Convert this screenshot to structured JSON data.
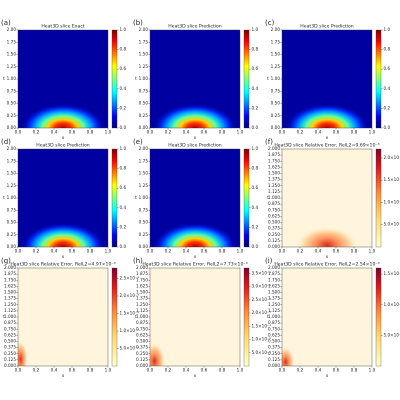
{
  "chart_data": [
    {
      "type": "heatmap",
      "panel_label": "(a)",
      "title": "Heat3D slice Exact",
      "x_label": "x",
      "y_label": "t",
      "colormap": "jet",
      "clim": [
        0,
        1
      ],
      "xlim": [
        0,
        1
      ],
      "ylim": [
        0,
        2
      ],
      "xticks": [
        {
          "value": 0,
          "label": "0.0"
        },
        0.2,
        0.4,
        0.6,
        0.8,
        {
          "value": 1,
          "label": "1.0"
        }
      ],
      "yticks": [
        {
          "value": 0,
          "label": "0.00"
        },
        0.25,
        {
          "value": 0.5,
          "label": "0.50"
        },
        0.75,
        {
          "value": 1,
          "label": "1.00"
        },
        1.25,
        {
          "value": 1.5,
          "label": "1.50"
        },
        1.75,
        {
          "value": 2,
          "label": "2.00"
        }
      ],
      "cticks": [
        {
          "value": 0,
          "label": "0.0"
        },
        0.2,
        0.4,
        0.6,
        0.8,
        {
          "value": 1,
          "label": "1.0"
        }
      ]
    },
    {
      "type": "heatmap",
      "panel_label": "(b)",
      "title": "Heat3D slice Prediction",
      "x_label": "x",
      "y_label": "t",
      "colormap": "jet",
      "clim": [
        0,
        1
      ],
      "xlim": [
        0,
        1
      ],
      "ylim": [
        0,
        2
      ],
      "xticks": [
        {
          "value": 0,
          "label": "0.0"
        },
        0.2,
        0.4,
        0.6,
        0.8,
        {
          "value": 1,
          "label": "1.0"
        }
      ],
      "yticks": [
        {
          "value": 0,
          "label": "0.00"
        },
        0.25,
        {
          "value": 0.5,
          "label": "0.50"
        },
        0.75,
        {
          "value": 1,
          "label": "1.00"
        },
        1.25,
        {
          "value": 1.5,
          "label": "1.50"
        },
        1.75,
        {
          "value": 2,
          "label": "2.00"
        }
      ],
      "cticks": [
        {
          "value": 0,
          "label": "0.0"
        },
        0.2,
        0.4,
        0.6,
        0.8,
        {
          "value": 1,
          "label": "1.0"
        }
      ]
    },
    {
      "type": "heatmap",
      "panel_label": "(c)",
      "title": "Heat3D slice Prediction",
      "x_label": "x",
      "y_label": "t",
      "colormap": "jet",
      "clim": [
        0,
        1
      ],
      "xlim": [
        0,
        1
      ],
      "ylim": [
        0,
        2
      ],
      "xticks": [
        {
          "value": 0,
          "label": "0.0"
        },
        0.2,
        0.4,
        0.6,
        0.8,
        {
          "value": 1,
          "label": "1.0"
        }
      ],
      "yticks": [
        {
          "value": 0,
          "label": "0.00"
        },
        0.25,
        {
          "value": 0.5,
          "label": "0.50"
        },
        0.75,
        {
          "value": 1,
          "label": "1.00"
        },
        1.25,
        {
          "value": 1.5,
          "label": "1.50"
        },
        1.75,
        {
          "value": 2,
          "label": "2.00"
        }
      ],
      "cticks": [
        {
          "value": 0,
          "label": "0.0"
        },
        0.2,
        0.4,
        0.6,
        0.8,
        {
          "value": 1,
          "label": "1.0"
        }
      ]
    },
    {
      "type": "heatmap",
      "panel_label": "(d)",
      "title": "Heat3D slice Prediction",
      "x_label": "x",
      "y_label": "t",
      "colormap": "jet",
      "clim": [
        0,
        1
      ],
      "xlim": [
        0,
        1
      ],
      "ylim": [
        0,
        2
      ],
      "xticks": [
        {
          "value": 0,
          "label": "0.0"
        },
        0.2,
        0.4,
        0.6,
        0.8,
        {
          "value": 1,
          "label": "1.0"
        }
      ],
      "yticks": [
        {
          "value": 0,
          "label": "0.00"
        },
        0.25,
        {
          "value": 0.5,
          "label": "0.50"
        },
        0.75,
        {
          "value": 1,
          "label": "1.00"
        },
        1.25,
        {
          "value": 1.5,
          "label": "1.50"
        },
        1.75,
        {
          "value": 2,
          "label": "2.00"
        }
      ],
      "cticks": [
        {
          "value": 0,
          "label": "0.0"
        },
        0.2,
        0.4,
        0.6,
        0.8,
        {
          "value": 1,
          "label": "1.0"
        }
      ]
    },
    {
      "type": "heatmap",
      "panel_label": "(e)",
      "title": "Heat3D slice Prediction",
      "x_label": "x",
      "y_label": "t",
      "colormap": "jet",
      "clim": [
        0,
        1
      ],
      "xlim": [
        0,
        1
      ],
      "ylim": [
        0,
        2
      ],
      "xticks": [
        {
          "value": 0,
          "label": "0.0"
        },
        0.2,
        0.4,
        0.6,
        0.8,
        {
          "value": 1,
          "label": "1.0"
        }
      ],
      "yticks": [
        {
          "value": 0,
          "label": "0.00"
        },
        0.25,
        {
          "value": 0.5,
          "label": "0.50"
        },
        0.75,
        {
          "value": 1,
          "label": "1.00"
        },
        1.25,
        {
          "value": 1.5,
          "label": "1.50"
        },
        1.75,
        {
          "value": 2,
          "label": "2.00"
        }
      ],
      "cticks": [
        {
          "value": 0,
          "label": "0.0"
        },
        0.2,
        0.4,
        0.6,
        0.8,
        {
          "value": 1,
          "label": "1.0"
        }
      ]
    },
    {
      "type": "heatmap",
      "panel_label": "(f)",
      "title": "Heat3D slice Relative Error, RelL2=9.69×10⁻³",
      "x_label": "x",
      "y_label": "t",
      "colormap": "YlOrRd",
      "clim": [
        0,
        0.0022
      ],
      "xlim": [
        0,
        1
      ],
      "ylim": [
        0,
        2
      ],
      "xticks": [
        {
          "value": 0,
          "label": "0.0"
        },
        0.2,
        0.4,
        0.6,
        0.8,
        {
          "value": 1,
          "label": "1.0"
        }
      ],
      "yticks": [
        {
          "value": 0,
          "label": "0.000"
        },
        0.125,
        {
          "value": 0.25,
          "label": "0.250"
        },
        0.375,
        {
          "value": 0.5,
          "label": "0.500"
        },
        0.625,
        {
          "value": 0.75,
          "label": "0.750"
        },
        0.875,
        {
          "value": 1,
          "label": "1.000"
        },
        1.125,
        {
          "value": 1.25,
          "label": "1.250"
        },
        1.375,
        {
          "value": 1.5,
          "label": "1.500"
        },
        1.625,
        {
          "value": 1.75,
          "label": "1.750"
        },
        1.875,
        {
          "value": 2,
          "label": "2.000"
        }
      ],
      "cticks": [
        {
          "value": 0.0005,
          "label": "5.0×10⁻⁴"
        },
        {
          "value": 0.001,
          "label": "1.0×10⁻³"
        },
        {
          "value": 0.0015,
          "label": "1.5×10⁻³"
        },
        {
          "value": 0.002,
          "label": "2.0×10⁻³"
        }
      ]
    },
    {
      "type": "heatmap",
      "panel_label": "(g)",
      "title": "Heat3D slice Relative Error, RelL2=4.97×10⁻³",
      "x_label": "x",
      "y_label": "t",
      "colormap": "YlOrRd",
      "clim": [
        0,
        0.0028
      ],
      "xlim": [
        0,
        1
      ],
      "ylim": [
        0,
        2
      ],
      "xticks": [
        {
          "value": 0,
          "label": "0.0"
        },
        0.2,
        0.4,
        0.6,
        0.8,
        {
          "value": 1,
          "label": "1.0"
        }
      ],
      "yticks": [
        {
          "value": 0,
          "label": "0.000"
        },
        0.125,
        {
          "value": 0.25,
          "label": "0.250"
        },
        0.375,
        {
          "value": 0.5,
          "label": "0.500"
        },
        0.625,
        {
          "value": 0.75,
          "label": "0.750"
        },
        0.875,
        {
          "value": 1,
          "label": "1.000"
        },
        1.125,
        {
          "value": 1.25,
          "label": "1.250"
        },
        1.375,
        {
          "value": 1.5,
          "label": "1.500"
        },
        1.625,
        {
          "value": 1.75,
          "label": "1.750"
        },
        1.875,
        {
          "value": 2,
          "label": "2.000"
        }
      ],
      "cticks": [
        {
          "value": 0.0005,
          "label": "5.0×10⁻⁴"
        },
        {
          "value": 0.001,
          "label": "1.0×10⁻³"
        },
        {
          "value": 0.0015,
          "label": "1.5×10⁻³"
        },
        {
          "value": 0.002,
          "label": "2.0×10⁻³"
        },
        {
          "value": 0.0025,
          "label": "2.5×10⁻³"
        }
      ]
    },
    {
      "type": "heatmap",
      "panel_label": "(h)",
      "title": "Heat3D slice Relative Error, RelL2=7.73×10⁻³",
      "x_label": "x",
      "y_label": "t",
      "colormap": "YlOrRd",
      "clim": [
        0,
        0.0037
      ],
      "xlim": [
        0,
        1
      ],
      "ylim": [
        0,
        2
      ],
      "xticks": [
        {
          "value": 0,
          "label": "0.0"
        },
        0.2,
        0.4,
        0.6,
        0.8,
        {
          "value": 1,
          "label": "1.0"
        }
      ],
      "yticks": [
        {
          "value": 0,
          "label": "0.000"
        },
        0.125,
        {
          "value": 0.25,
          "label": "0.250"
        },
        0.375,
        {
          "value": 0.5,
          "label": "0.500"
        },
        0.625,
        {
          "value": 0.75,
          "label": "0.750"
        },
        0.875,
        {
          "value": 1,
          "label": "1.000"
        },
        1.125,
        {
          "value": 1.25,
          "label": "1.250"
        },
        1.375,
        {
          "value": 1.5,
          "label": "1.500"
        },
        1.625,
        {
          "value": 1.75,
          "label": "1.750"
        },
        1.875,
        {
          "value": 2,
          "label": "2.000"
        }
      ],
      "cticks": [
        {
          "value": 0.0005,
          "label": "5.0×10⁻⁴"
        },
        {
          "value": 0.001,
          "label": "1.0×10⁻³"
        },
        {
          "value": 0.0015,
          "label": "1.5×10⁻³"
        },
        {
          "value": 0.002,
          "label": "2.0×10⁻³"
        },
        {
          "value": 0.0025,
          "label": "2.5×10⁻³"
        },
        {
          "value": 0.003,
          "label": "3.0×10⁻³"
        },
        {
          "value": 0.0035,
          "label": "3.5×10⁻³"
        }
      ]
    },
    {
      "type": "heatmap",
      "panel_label": "(i)",
      "title": "Heat3D slice Relative Error, RelL2=2.54×10⁻³",
      "x_label": "x",
      "y_label": "t",
      "colormap": "YlOrRd",
      "clim": [
        0,
        0.0016
      ],
      "xlim": [
        0,
        1
      ],
      "ylim": [
        0,
        2
      ],
      "xticks": [
        {
          "value": 0,
          "label": "0.0"
        },
        0.2,
        0.4,
        0.6,
        0.8,
        {
          "value": 1,
          "label": "1.0"
        }
      ],
      "yticks": [
        {
          "value": 0,
          "label": "0.000"
        },
        0.125,
        {
          "value": 0.25,
          "label": "0.250"
        },
        0.375,
        {
          "value": 0.5,
          "label": "0.500"
        },
        0.625,
        {
          "value": 0.75,
          "label": "0.750"
        },
        0.875,
        {
          "value": 1,
          "label": "1.000"
        },
        1.125,
        {
          "value": 1.25,
          "label": "1.250"
        },
        1.375,
        {
          "value": 1.5,
          "label": "1.500"
        },
        1.625,
        {
          "value": 1.75,
          "label": "1.750"
        },
        1.875,
        {
          "value": 2,
          "label": "2.000"
        }
      ],
      "cticks": [
        {
          "value": 0.0005,
          "label": "5.0×10⁻⁴"
        },
        {
          "value": 0.001,
          "label": "1.0×10⁻³"
        },
        {
          "value": 0.0015,
          "label": "1.5×10⁻³"
        }
      ]
    }
  ]
}
